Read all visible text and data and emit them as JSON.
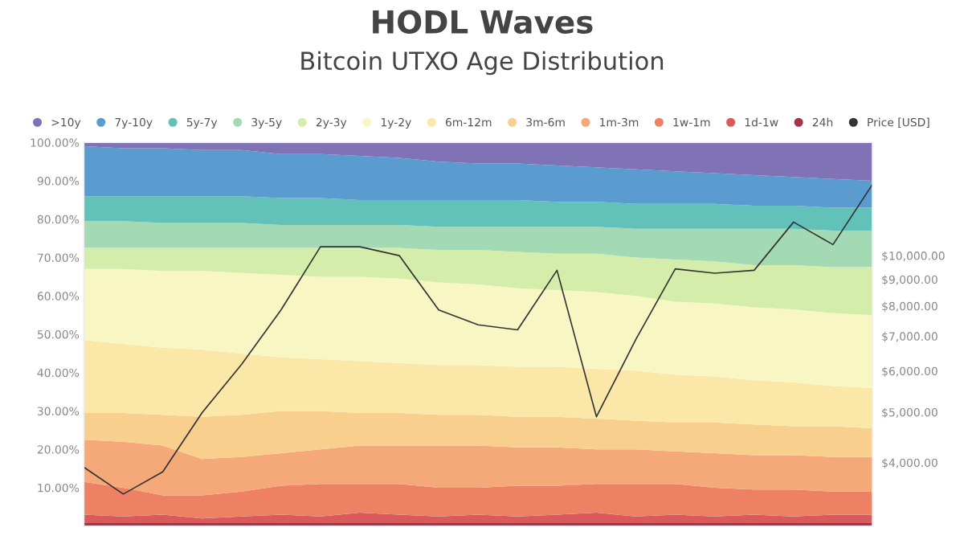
{
  "chart_data": {
    "type": "area",
    "title": "HODL Waves",
    "subtitle": "Bitcoin UTXO Age Distribution",
    "stacked": true,
    "legend": "top",
    "grid": false,
    "categories": [
      null,
      null,
      null,
      null,
      null,
      null,
      null,
      null,
      null,
      null,
      null,
      null,
      null,
      null,
      null,
      null,
      null,
      null,
      null,
      null,
      null
    ],
    "ylim": [
      0,
      100
    ],
    "yticks": [
      {
        "value": 10,
        "label": "10.00%"
      },
      {
        "value": 20,
        "label": "20.00%"
      },
      {
        "value": 30,
        "label": "30.00%"
      },
      {
        "value": 40,
        "label": "40.00%"
      },
      {
        "value": 50,
        "label": "50.00%"
      },
      {
        "value": 60,
        "label": "60.00%"
      },
      {
        "value": 70,
        "label": "70.00%"
      },
      {
        "value": 80,
        "label": "80.00%"
      },
      {
        "value": 90,
        "label": "90.00%"
      },
      {
        "value": 100,
        "label": "100.00%"
      }
    ],
    "log": "y2",
    "y2lim": [
      3020,
      16500
    ],
    "y2ticks": [
      {
        "value": 4000,
        "label": "$4,000.00"
      },
      {
        "value": 5000,
        "label": "$5,000.00"
      },
      {
        "value": 6000,
        "label": "$6,000.00"
      },
      {
        "value": 7000,
        "label": "$7,000.00"
      },
      {
        "value": 8000,
        "label": "$8,000.00"
      },
      {
        "value": 9000,
        "label": "$9,000.00"
      },
      {
        "value": 10000,
        "label": "$10,000.00"
      }
    ],
    "series": [
      {
        "name": "24h",
        "color": "#a8324b",
        "values": [
          0.8,
          0.8,
          0.8,
          0.8,
          0.8,
          0.8,
          0.8,
          0.8,
          0.8,
          0.8,
          0.8,
          0.8,
          0.8,
          0.8,
          0.8,
          0.8,
          0.8,
          0.8,
          0.8,
          0.8,
          0.8
        ]
      },
      {
        "name": "1d-1w",
        "color": "#d85a5a",
        "values": [
          2.2,
          1.7,
          2.2,
          1.2,
          1.7,
          2.2,
          1.7,
          2.7,
          2.2,
          1.7,
          2.2,
          1.7,
          2.2,
          2.7,
          1.7,
          2.2,
          1.7,
          2.2,
          1.7,
          2.2,
          2.2
        ]
      },
      {
        "name": "1w-1m",
        "color": "#ee8064",
        "values": [
          8.5,
          7.5,
          5,
          6,
          6.5,
          7.5,
          8.5,
          7.5,
          8,
          7.5,
          7,
          8,
          7.5,
          7.5,
          8.5,
          8,
          7.5,
          6.5,
          7,
          6,
          6
        ]
      },
      {
        "name": "1m-3m",
        "color": "#f5a878",
        "values": [
          11,
          12,
          13,
          9.5,
          9,
          8.5,
          9,
          10,
          10,
          11,
          11,
          10,
          10,
          9,
          9,
          8.5,
          9,
          9,
          9,
          9,
          9
        ]
      },
      {
        "name": "3m-6m",
        "color": "#f9cf8e",
        "values": [
          7,
          7.5,
          8,
          11,
          11,
          11,
          10,
          8.5,
          8.5,
          8,
          8,
          8,
          8,
          8,
          7.5,
          7.5,
          8,
          8,
          7.5,
          8,
          7.5
        ]
      },
      {
        "name": "6m-12m",
        "color": "#fbe8a8",
        "values": [
          19,
          18,
          17.5,
          17.5,
          16,
          14,
          13.5,
          13.5,
          13,
          13,
          13,
          13,
          13,
          13,
          13,
          12.5,
          12,
          11.5,
          11.5,
          10.5,
          10.5
        ]
      },
      {
        "name": "1y-2y",
        "color": "#f8f6c2",
        "values": [
          18.5,
          19.5,
          20,
          20.5,
          21,
          21.5,
          21.5,
          22,
          22,
          21.5,
          21,
          20.5,
          20,
          20,
          19.5,
          19,
          19,
          19,
          19,
          19,
          19
        ]
      },
      {
        "name": "2y-3y",
        "color": "#d5edaa",
        "values": [
          5.5,
          5.5,
          6,
          6,
          6.5,
          7,
          7.5,
          7.5,
          8,
          8.5,
          9,
          9.5,
          9.5,
          10,
          10,
          11,
          11,
          11,
          11.5,
          12,
          12.5
        ]
      },
      {
        "name": "3y-5y",
        "color": "#a3d9b3",
        "values": [
          7,
          7,
          6.5,
          6.5,
          6.5,
          6,
          6,
          6,
          6,
          6,
          6,
          6.5,
          7,
          7,
          7.5,
          8,
          8.5,
          9.5,
          9.5,
          9.5,
          9.5
        ]
      },
      {
        "name": "5y-7y",
        "color": "#62c1b8",
        "values": [
          6.5,
          6.5,
          7,
          7,
          7,
          7,
          7,
          6.5,
          6.5,
          7,
          7,
          7,
          6.5,
          6.5,
          6.5,
          6.5,
          6.5,
          6,
          6,
          6,
          6
        ]
      },
      {
        "name": "7y-10y",
        "color": "#5a9bd0",
        "values": [
          13,
          12.5,
          12.5,
          12,
          12,
          11.5,
          11.5,
          11.5,
          11,
          10,
          9.5,
          9.5,
          9.5,
          9,
          9,
          8.5,
          8,
          8,
          7.5,
          7.5,
          7
        ]
      },
      {
        "name": ">10y",
        "color": "#7f73b6",
        "values": [
          1,
          1.5,
          1.5,
          2,
          2,
          3,
          3,
          3.5,
          4,
          5,
          5.5,
          5.5,
          6,
          6.5,
          7,
          7.5,
          8,
          8.5,
          9,
          9.5,
          10
        ]
      },
      {
        "name": "Price [USD]",
        "type": "line",
        "axis": "y2",
        "color": "#333333",
        "values": [
          3920,
          3480,
          3840,
          4990,
          6180,
          7860,
          10400,
          10400,
          10000,
          7860,
          7360,
          7200,
          9370,
          4900,
          6900,
          9430,
          9250,
          9370,
          11600,
          10500,
          13700
        ]
      }
    ]
  }
}
